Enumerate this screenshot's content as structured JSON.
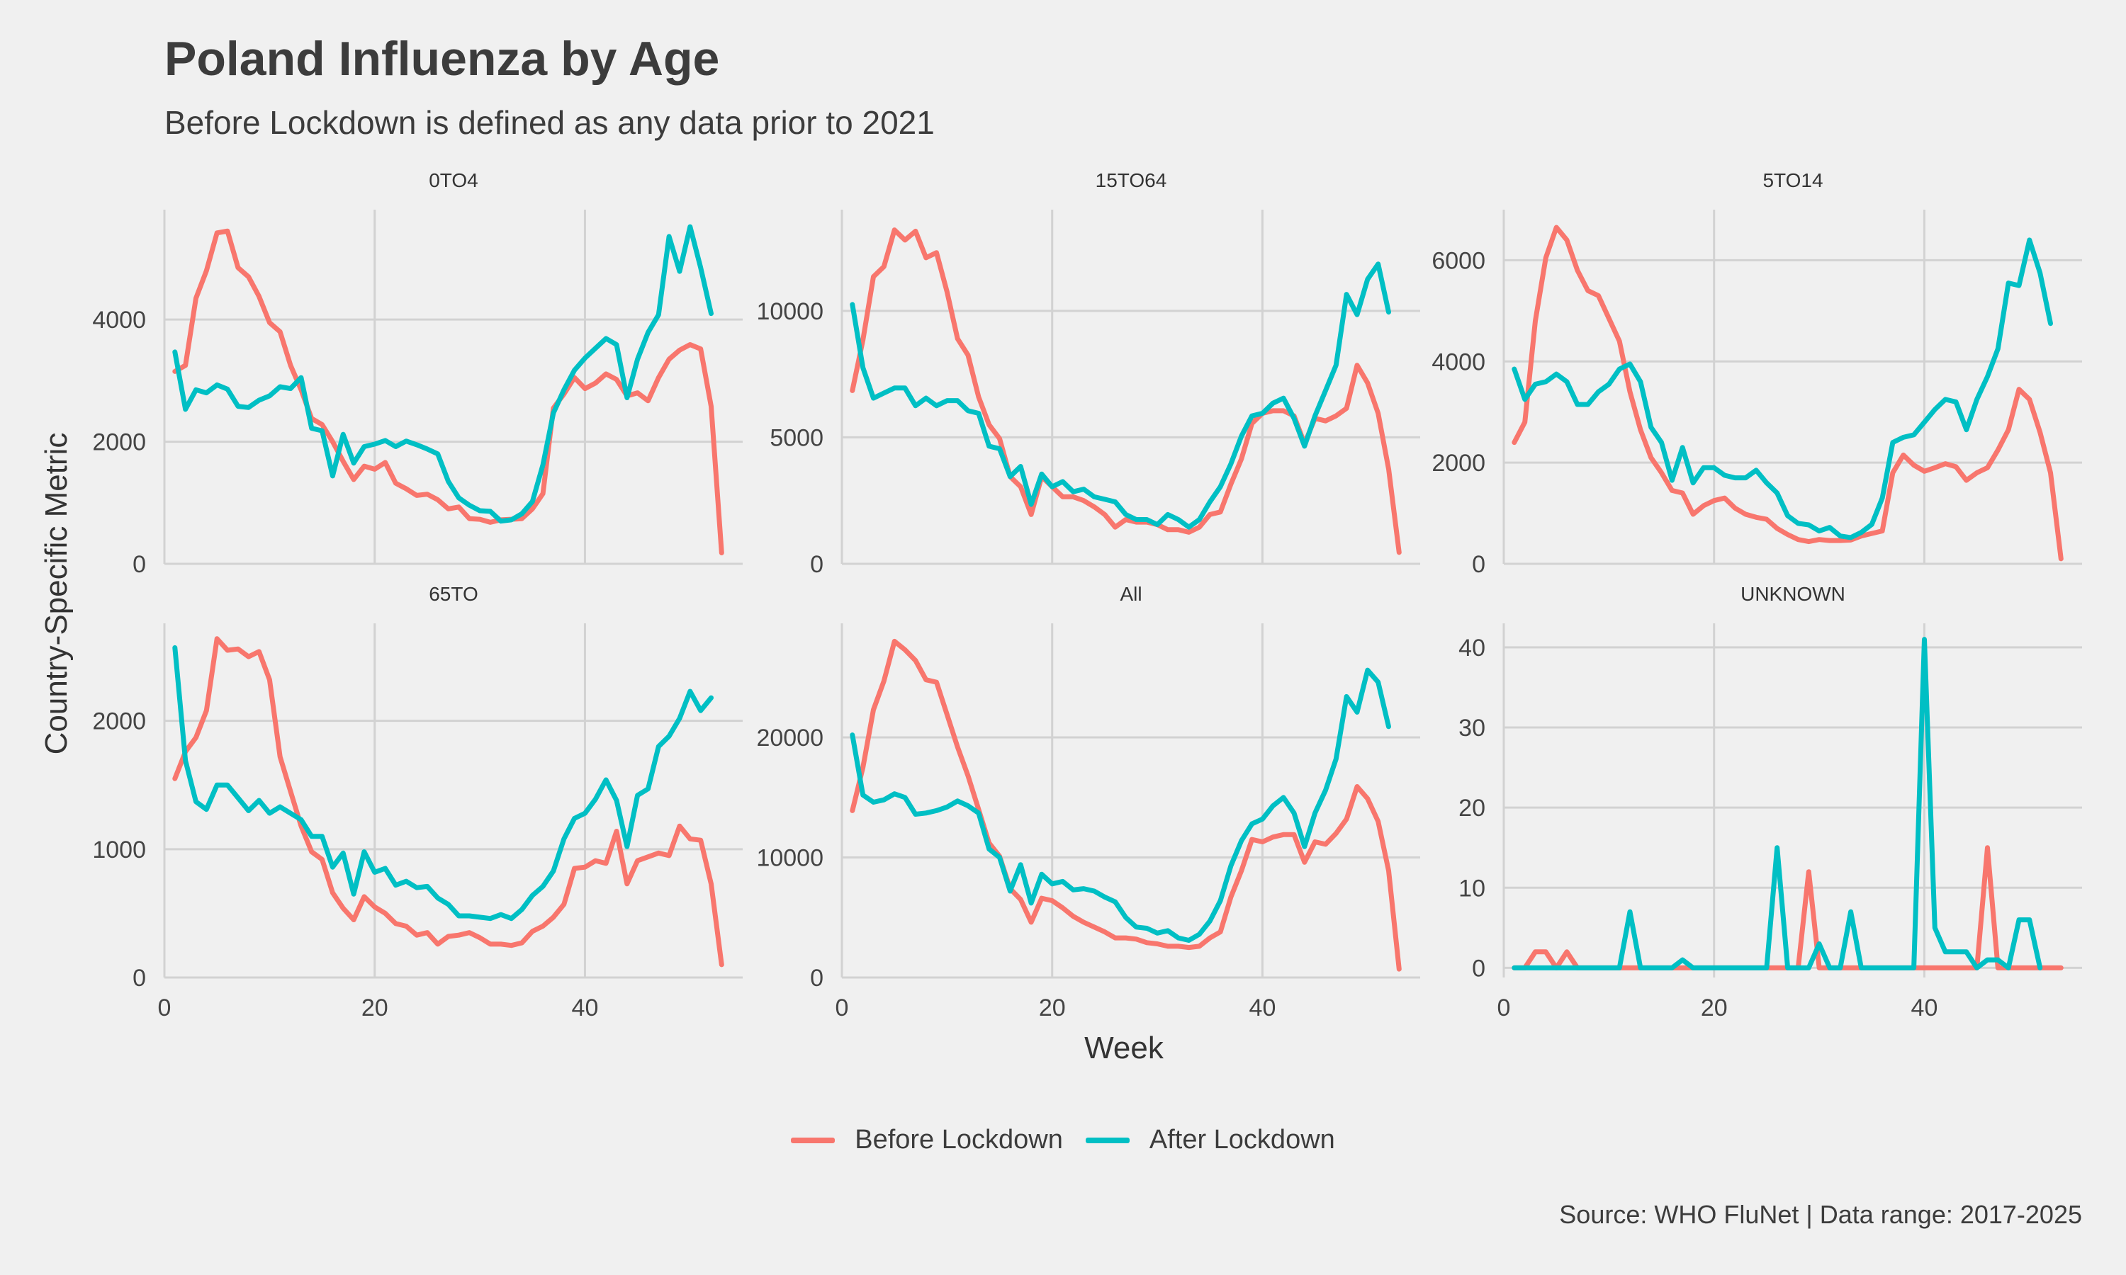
{
  "title": "Poland Influenza by Age",
  "subtitle": "Before Lockdown is defined as any data prior to 2021",
  "caption": "Source: WHO FluNet | Data range: 2017-2025",
  "legend": {
    "before_label": "Before Lockdown",
    "after_label": "After Lockdown"
  },
  "colors": {
    "before": "#f8766d",
    "after": "#00bfc4",
    "grid": "#d2d2d2",
    "background": "#f0f0f0"
  },
  "chart_data": {
    "type": "line",
    "title": "Poland Influenza by Age",
    "subtitle": "Before Lockdown is defined as any data prior to 2021",
    "xlabel": "Week",
    "ylabel": "Country-Specific Metric",
    "legend_position": "bottom",
    "grid": true,
    "xlim": [
      0,
      55
    ],
    "xticks": [
      0,
      20,
      40
    ],
    "x_start": 1,
    "panels": [
      {
        "name": "0TO4",
        "ylim": [
          0,
          5800
        ],
        "yticks": [
          0,
          2000,
          4000
        ],
        "series": [
          {
            "name": "Before Lockdown",
            "values": [
              3150,
              3250,
              4350,
              4800,
              5420,
              5450,
              4850,
              4700,
              4380,
              3950,
              3800,
              3250,
              2850,
              2380,
              2280,
              2000,
              1680,
              1380,
              1600,
              1550,
              1660,
              1320,
              1230,
              1120,
              1140,
              1050,
              900,
              930,
              740,
              730,
              680,
              720,
              730,
              740,
              900,
              1150,
              2550,
              2780,
              3050,
              2870,
              2960,
              3110,
              3020,
              2750,
              2800,
              2670,
              3050,
              3350,
              3500,
              3590,
              3520,
              2580,
              180
            ]
          },
          {
            "name": "After Lockdown",
            "values": [
              3470,
              2530,
              2850,
              2800,
              2930,
              2860,
              2580,
              2560,
              2680,
              2750,
              2900,
              2870,
              3050,
              2220,
              2180,
              1440,
              2120,
              1650,
              1920,
              1960,
              2020,
              1920,
              2010,
              1950,
              1880,
              1800,
              1350,
              1080,
              960,
              870,
              860,
              700,
              720,
              820,
              1020,
              1620,
              2470,
              2850,
              3170,
              3370,
              3530,
              3690,
              3590,
              2720,
              3350,
              3790,
              4080,
              5360,
              4790,
              5520,
              4850,
              4100
            ]
          }
        ]
      },
      {
        "name": "15TO64",
        "ylim": [
          0,
          14000
        ],
        "yticks": [
          0,
          5000,
          10000
        ],
        "series": [
          {
            "name": "Before Lockdown",
            "values": [
              6850,
              8850,
              11350,
              11750,
              13200,
              12800,
              13150,
              12100,
              12300,
              10750,
              8900,
              8250,
              6600,
              5500,
              4950,
              3450,
              3050,
              1950,
              3450,
              3050,
              2650,
              2650,
              2500,
              2250,
              1950,
              1450,
              1750,
              1650,
              1650,
              1550,
              1350,
              1350,
              1250,
              1450,
              1950,
              2050,
              3150,
              4150,
              5550,
              5950,
              6050,
              6050,
              5850,
              4750,
              5750,
              5650,
              5850,
              6150,
              7850,
              7150,
              5950,
              3750,
              450
            ]
          },
          {
            "name": "After Lockdown",
            "values": [
              10250,
              7750,
              6550,
              6750,
              6950,
              6950,
              6250,
              6550,
              6250,
              6450,
              6450,
              6050,
              5950,
              4650,
              4550,
              3450,
              3850,
              2350,
              3550,
              3050,
              3250,
              2850,
              2950,
              2650,
              2550,
              2450,
              1950,
              1750,
              1750,
              1550,
              1950,
              1750,
              1450,
              1750,
              2450,
              3050,
              3950,
              5050,
              5850,
              5950,
              6350,
              6550,
              5750,
              4650,
              5850,
              6850,
              7850,
              10650,
              9850,
              11250,
              11850,
              9950
            ]
          }
        ]
      },
      {
        "name": "5TO14",
        "ylim": [
          0,
          7000
        ],
        "yticks": [
          0,
          2000,
          4000,
          6000
        ],
        "series": [
          {
            "name": "Before Lockdown",
            "values": [
              2400,
              2800,
              4800,
              6050,
              6650,
              6400,
              5800,
              5400,
              5300,
              4850,
              4400,
              3400,
              2650,
              2100,
              1800,
              1450,
              1400,
              980,
              1150,
              1250,
              1300,
              1100,
              980,
              920,
              880,
              700,
              580,
              480,
              440,
              480,
              460,
              460,
              470,
              550,
              600,
              650,
              1800,
              2150,
              1950,
              1830,
              1900,
              1980,
              1920,
              1650,
              1800,
              1900,
              2250,
              2650,
              3450,
              3250,
              2600,
              1800,
              100
            ]
          },
          {
            "name": "After Lockdown",
            "values": [
              3850,
              3250,
              3550,
              3600,
              3750,
              3600,
              3150,
              3150,
              3400,
              3550,
              3850,
              3950,
              3600,
              2700,
              2400,
              1650,
              2300,
              1600,
              1900,
              1900,
              1750,
              1700,
              1700,
              1850,
              1600,
              1400,
              950,
              800,
              770,
              650,
              720,
              550,
              520,
              620,
              780,
              1300,
              2400,
              2500,
              2550,
              2800,
              3050,
              3250,
              3200,
              2650,
              3250,
              3700,
              4250,
              5550,
              5500,
              6400,
              5750,
              4750
            ]
          }
        ]
      },
      {
        "name": "65TO",
        "ylim": [
          0,
          2760
        ],
        "yticks": [
          0,
          1000,
          2000
        ],
        "series": [
          {
            "name": "Before Lockdown",
            "values": [
              1550,
              1760,
              1870,
              2080,
              2640,
              2550,
              2560,
              2500,
              2540,
              2320,
              1720,
              1450,
              1180,
              980,
              920,
              660,
              540,
              450,
              630,
              550,
              500,
              420,
              400,
              330,
              350,
              260,
              320,
              330,
              350,
              310,
              260,
              260,
              250,
              270,
              360,
              400,
              470,
              570,
              850,
              860,
              910,
              890,
              1140,
              730,
              910,
              940,
              970,
              950,
              1180,
              1080,
              1070,
              730,
              100
            ]
          },
          {
            "name": "After Lockdown",
            "values": [
              2570,
              1690,
              1370,
              1310,
              1500,
              1500,
              1400,
              1300,
              1380,
              1280,
              1330,
              1280,
              1230,
              1100,
              1100,
              860,
              970,
              650,
              980,
              820,
              850,
              720,
              750,
              700,
              710,
              620,
              570,
              480,
              480,
              470,
              460,
              490,
              460,
              530,
              640,
              710,
              830,
              1080,
              1240,
              1280,
              1390,
              1540,
              1380,
              1020,
              1420,
              1470,
              1800,
              1880,
              2020,
              2230,
              2080,
              2180
            ]
          }
        ]
      },
      {
        "name": "All",
        "ylim": [
          0,
          29500
        ],
        "yticks": [
          0,
          10000,
          20000
        ],
        "series": [
          {
            "name": "Before Lockdown",
            "values": [
              13900,
              17500,
              22300,
              24700,
              28000,
              27300,
              26400,
              24800,
              24600,
              21900,
              19200,
              16800,
              14000,
              11200,
              10100,
              7400,
              6500,
              4600,
              6600,
              6400,
              5800,
              5100,
              4600,
              4200,
              3800,
              3300,
              3300,
              3200,
              2900,
              2800,
              2600,
              2600,
              2500,
              2600,
              3300,
              3800,
              6700,
              8900,
              11500,
              11300,
              11700,
              11900,
              11900,
              9600,
              11300,
              11100,
              12000,
              13200,
              15900,
              14900,
              13000,
              8900,
              700
            ]
          },
          {
            "name": "After Lockdown",
            "values": [
              20200,
              15200,
              14600,
              14800,
              15300,
              15000,
              13600,
              13700,
              13900,
              14200,
              14700,
              14300,
              13700,
              10700,
              10000,
              7200,
              9400,
              6200,
              8600,
              7800,
              8000,
              7300,
              7400,
              7200,
              6700,
              6300,
              5000,
              4200,
              4100,
              3700,
              3900,
              3300,
              3100,
              3600,
              4700,
              6400,
              9300,
              11400,
              12800,
              13200,
              14300,
              15000,
              13700,
              10900,
              13700,
              15600,
              18200,
              23400,
              22100,
              25600,
              24600,
              20900
            ]
          }
        ]
      },
      {
        "name": "UNKNOWN",
        "ylim": [
          -1.2,
          43
        ],
        "yticks": [
          0,
          10,
          20,
          30,
          40
        ],
        "series": [
          {
            "name": "Before Lockdown",
            "values": [
              0,
              0,
              2,
              2,
              0,
              2,
              0,
              0,
              0,
              0,
              0,
              0,
              0,
              0,
              0,
              0,
              0,
              0,
              0,
              0,
              0,
              0,
              0,
              0,
              0,
              0,
              0,
              0,
              12,
              0,
              0,
              0,
              0,
              0,
              0,
              0,
              0,
              0,
              0,
              0,
              0,
              0,
              0,
              0,
              0,
              15,
              0,
              0,
              0,
              0,
              0,
              0,
              0
            ]
          },
          {
            "name": "After Lockdown",
            "values": [
              0,
              0,
              0,
              0,
              0,
              0,
              0,
              0,
              0,
              0,
              0,
              7,
              0,
              0,
              0,
              0,
              1,
              0,
              0,
              0,
              0,
              0,
              0,
              0,
              0,
              15,
              0,
              0,
              0,
              3,
              0,
              0,
              7,
              0,
              0,
              0,
              0,
              0,
              0,
              41,
              5,
              2,
              2,
              2,
              0,
              1,
              1,
              0,
              6,
              6,
              0
            ]
          }
        ]
      }
    ]
  }
}
